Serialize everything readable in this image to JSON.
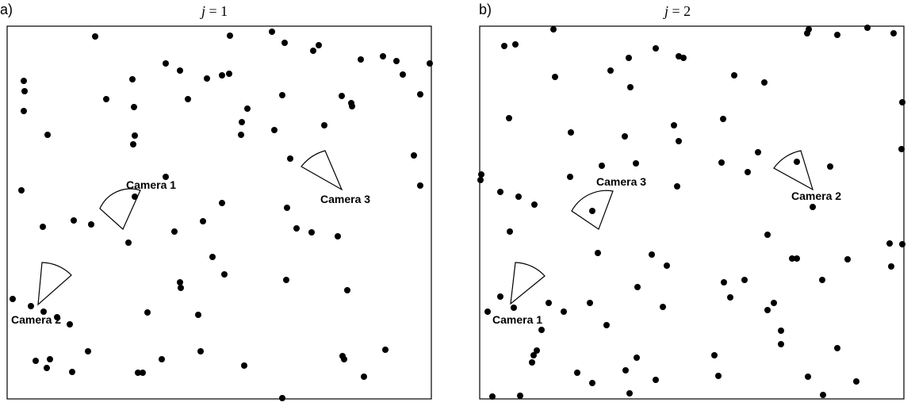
{
  "panels": [
    {
      "letter": "a)",
      "title_var": "j",
      "title_rest": " = 1",
      "cameras": [
        {
          "label": "Camera 1"
        },
        {
          "label": "Camera 2"
        },
        {
          "label": "Camera 3"
        }
      ]
    },
    {
      "letter": "b)",
      "title_var": "j",
      "title_rest": " = 2",
      "cameras": [
        {
          "label": "Camera 1"
        },
        {
          "label": "Camera 2"
        },
        {
          "label": "Camera 3"
        }
      ]
    }
  ],
  "colors": {
    "points": "#000000",
    "lines": "#000000",
    "background": "#ffffff"
  }
}
